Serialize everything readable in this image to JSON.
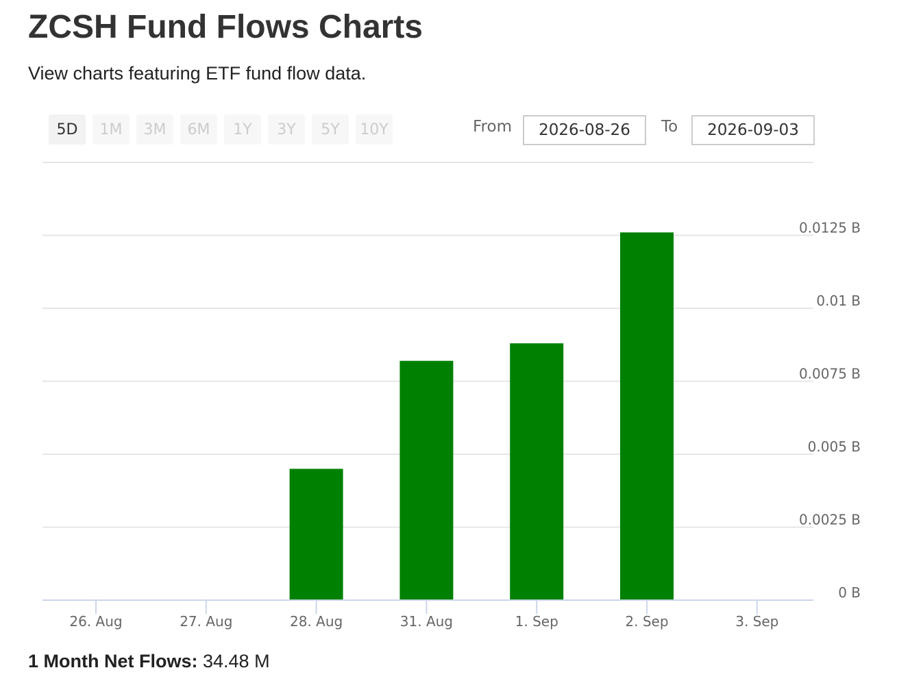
{
  "page": {
    "title": "ZCSH Fund Flows Charts",
    "subtitle": "View charts featuring ETF fund flow data."
  },
  "range_selector": {
    "buttons": [
      "5D",
      "1M",
      "3M",
      "6M",
      "1Y",
      "3Y",
      "5Y",
      "10Y"
    ],
    "active": "5D"
  },
  "date_range": {
    "from_label": "From",
    "from_value": "2026-08-26",
    "to_label": "To",
    "to_value": "2026-09-03"
  },
  "colors": {
    "bar": "#008000",
    "grid": "#e6e6e6",
    "axis": "#ccd6eb"
  },
  "chart_data": {
    "type": "bar",
    "categories": [
      "26. Aug",
      "27. Aug",
      "28. Aug",
      "31. Aug",
      "1. Sep",
      "2. Sep",
      "3. Sep"
    ],
    "values": [
      0,
      0,
      0.0045,
      0.0082,
      0.0088,
      0.0126,
      0
    ],
    "unit": "B",
    "ylim": [
      0,
      0.015
    ],
    "yticks": [
      0,
      0.0025,
      0.005,
      0.0075,
      0.01,
      0.0125
    ],
    "ytick_labels": [
      "0 B",
      "0.0025 B",
      "0.005 B",
      "0.0075 B",
      "0.01 B",
      "0.0125 B"
    ],
    "grid": true,
    "y_axis_side": "right",
    "legend": false
  },
  "footer": {
    "label": "1 Month Net Flows:",
    "value": "34.48 M"
  }
}
